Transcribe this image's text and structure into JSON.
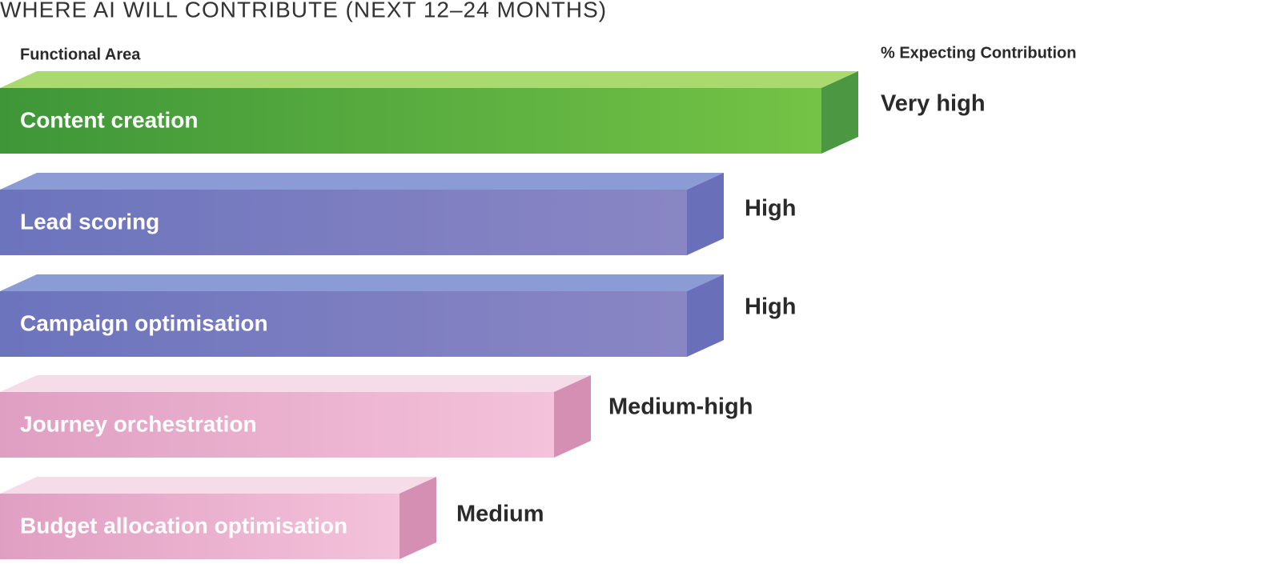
{
  "title": "WHERE AI WILL CONTRIBUTE (NEXT 12–24 MONTHS)",
  "header": {
    "area": "Functional Area",
    "level": "% Expecting Contribution"
  },
  "rows": [
    {
      "area": "Content creation",
      "level": "Very high"
    },
    {
      "area": "Lead scoring",
      "level": "High"
    },
    {
      "area": "Campaign optimisation",
      "level": "High"
    },
    {
      "area": "Journey orchestration",
      "level": "Medium-high"
    },
    {
      "area": "Budget allocation optimisation",
      "level": "Medium"
    }
  ]
}
